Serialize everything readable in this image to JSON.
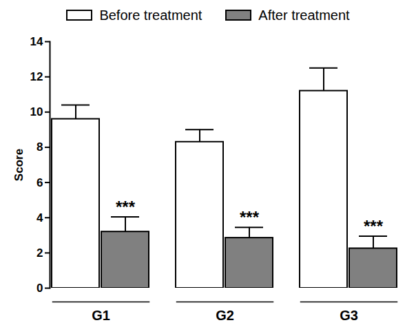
{
  "chart_data": {
    "type": "bar",
    "y_label": "Score",
    "categories": [
      "G1",
      "G2",
      "G3"
    ],
    "series": [
      {
        "name": "Before treatment",
        "color": "#ffffff",
        "values": [
          9.6,
          8.3,
          11.2
        ],
        "errors": [
          0.8,
          0.7,
          1.3
        ]
      },
      {
        "name": "After treatment",
        "color": "#808080",
        "values": [
          3.2,
          2.85,
          2.25
        ],
        "errors": [
          0.85,
          0.6,
          0.7
        ]
      }
    ],
    "annotations": [
      {
        "category": "G1",
        "series": "After treatment",
        "text": "***"
      },
      {
        "category": "G2",
        "series": "After treatment",
        "text": "***"
      },
      {
        "category": "G3",
        "series": "After treatment",
        "text": "***"
      }
    ],
    "ylim": [
      0,
      14
    ],
    "yticks": [
      0,
      2,
      4,
      6,
      8,
      10,
      12,
      14
    ],
    "legend": "top"
  }
}
